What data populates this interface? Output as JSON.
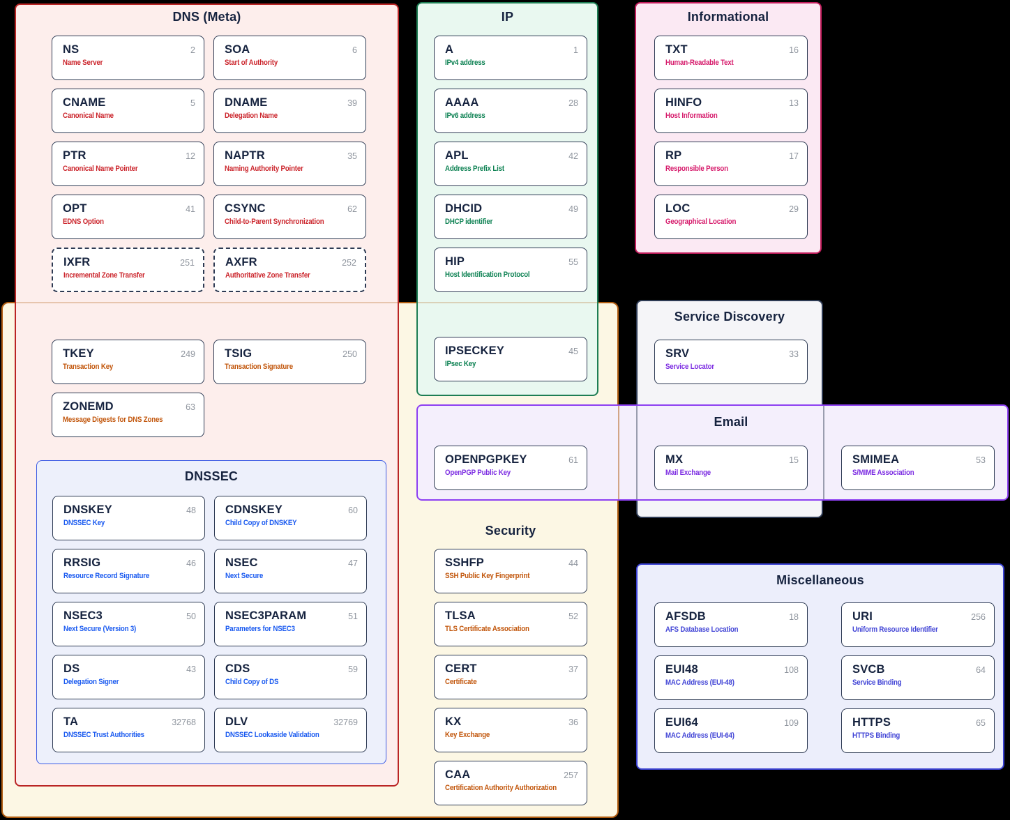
{
  "page": {
    "background": "#000000"
  },
  "card_style": {
    "border_color": "#2d3a53",
    "title_color": "#16233f",
    "number_color": "#8f959e"
  },
  "sections": {
    "dns_meta": {
      "title": "DNS (Meta)",
      "border_color": "#ba2525",
      "background": "#fdeeec",
      "accent": "#cb242b",
      "cards": [
        {
          "code": "NS",
          "number": "2",
          "desc": "Name Server"
        },
        {
          "code": "SOA",
          "number": "6",
          "desc": "Start of Authority"
        },
        {
          "code": "CNAME",
          "number": "5",
          "desc": "Canonical Name"
        },
        {
          "code": "DNAME",
          "number": "39",
          "desc": "Delegation Name"
        },
        {
          "code": "PTR",
          "number": "12",
          "desc": "Canonical Name Pointer"
        },
        {
          "code": "NAPTR",
          "number": "35",
          "desc": "Naming Authority Pointer"
        },
        {
          "code": "OPT",
          "number": "41",
          "desc": "EDNS Option"
        },
        {
          "code": "CSYNC",
          "number": "62",
          "desc": "Child-to-Parent Synchronization"
        },
        {
          "code": "IXFR",
          "number": "251",
          "desc": "Incremental Zone Transfer",
          "dashed": true
        },
        {
          "code": "AXFR",
          "number": "252",
          "desc": "Authoritative Zone Transfer",
          "dashed": true
        }
      ]
    },
    "meta_security_overlap": {
      "accent": "#c2570d",
      "cards": [
        {
          "code": "TKEY",
          "number": "249",
          "desc": "Transaction Key"
        },
        {
          "code": "TSIG",
          "number": "250",
          "desc": "Transaction Signature"
        },
        {
          "code": "ZONEMD",
          "number": "63",
          "desc": "Message Digests for DNS Zones"
        }
      ]
    },
    "dnssec": {
      "title": "DNSSEC",
      "border_color": "#3c5be4",
      "background": "#edf0fb",
      "accent": "#1a5af0",
      "cards": [
        {
          "code": "DNSKEY",
          "number": "48",
          "desc": "DNSSEC Key"
        },
        {
          "code": "CDNSKEY",
          "number": "60",
          "desc": "Child Copy of DNSKEY"
        },
        {
          "code": "RRSIG",
          "number": "46",
          "desc": "Resource Record Signature"
        },
        {
          "code": "NSEC",
          "number": "47",
          "desc": "Next Secure"
        },
        {
          "code": "NSEC3",
          "number": "50",
          "desc": "Next Secure (Version 3)"
        },
        {
          "code": "NSEC3PARAM",
          "number": "51",
          "desc": "Parameters for NSEC3"
        },
        {
          "code": "DS",
          "number": "43",
          "desc": "Delegation Signer"
        },
        {
          "code": "CDS",
          "number": "59",
          "desc": "Child Copy of DS"
        },
        {
          "code": "TA",
          "number": "32768",
          "desc": "DNSSEC Trust Authorities"
        },
        {
          "code": "DLV",
          "number": "32769",
          "desc": "DNSSEC Lookaside Validation"
        }
      ]
    },
    "ip": {
      "title": "IP",
      "border_color": "#1e7e54",
      "background": "#e9f8f0",
      "accent": "#0c8152",
      "cards": [
        {
          "code": "A",
          "number": "1",
          "desc": "IPv4 address"
        },
        {
          "code": "AAAA",
          "number": "28",
          "desc": "IPv6 address"
        },
        {
          "code": "APL",
          "number": "42",
          "desc": "Address Prefix List"
        },
        {
          "code": "DHCID",
          "number": "49",
          "desc": "DHCP identifier"
        },
        {
          "code": "HIP",
          "number": "55",
          "desc": "Host Identification Protocol"
        }
      ],
      "overlap_cards": [
        {
          "code": "IPSECKEY",
          "number": "45",
          "desc": "IPsec Key"
        }
      ]
    },
    "informational": {
      "title": "Informational",
      "border_color": "#c21d5c",
      "background": "#fbe9f3",
      "accent": "#d61a6b",
      "cards": [
        {
          "code": "TXT",
          "number": "16",
          "desc": "Human-Readable Text"
        },
        {
          "code": "HINFO",
          "number": "13",
          "desc": "Host Information"
        },
        {
          "code": "RP",
          "number": "17",
          "desc": "Responsible Person"
        },
        {
          "code": "LOC",
          "number": "29",
          "desc": "Geographical Location"
        }
      ]
    },
    "service_discovery": {
      "title": "Service Discovery",
      "border_color": "#2d3a53",
      "background": "#f5f5f8",
      "accent": "#7c2ce2",
      "cards": [
        {
          "code": "SRV",
          "number": "33",
          "desc": "Service Locator"
        }
      ]
    },
    "email": {
      "title": "Email",
      "border_color": "#8d3ff2",
      "background": "#f4effc",
      "accent": "#7c2ce2",
      "cards_left": [
        {
          "code": "OPENPGPKEY",
          "number": "61",
          "desc": "OpenPGP Public Key"
        }
      ],
      "cards_center": [
        {
          "code": "MX",
          "number": "15",
          "desc": "Mail Exchange"
        }
      ],
      "cards_right": [
        {
          "code": "SMIMEA",
          "number": "53",
          "desc": "S/MIME Association"
        }
      ]
    },
    "security": {
      "title": "Security",
      "border_color": "#b05c10",
      "background": "#fcf7e4",
      "accent": "#c2570d",
      "cards": [
        {
          "code": "SSHFP",
          "number": "44",
          "desc": "SSH Public Key Fingerprint"
        },
        {
          "code": "TLSA",
          "number": "52",
          "desc": "TLS Certificate Association"
        },
        {
          "code": "CERT",
          "number": "37",
          "desc": "Certificate"
        },
        {
          "code": "KX",
          "number": "36",
          "desc": "Key Exchange"
        },
        {
          "code": "CAA",
          "number": "257",
          "desc": "Certification Authority Authorization"
        }
      ]
    },
    "misc": {
      "title": "Miscellaneous",
      "border_color": "#3a41d2",
      "background": "#eceefb",
      "accent": "#4245d6",
      "cards": [
        {
          "code": "AFSDB",
          "number": "18",
          "desc": "AFS Database Location"
        },
        {
          "code": "URI",
          "number": "256",
          "desc": "Uniform Resource Identifier"
        },
        {
          "code": "EUI48",
          "number": "108",
          "desc": "MAC Address (EUI-48)"
        },
        {
          "code": "SVCB",
          "number": "64",
          "desc": "Service Binding"
        },
        {
          "code": "EUI64",
          "number": "109",
          "desc": "MAC Address (EUI-64)"
        },
        {
          "code": "HTTPS",
          "number": "65",
          "desc": "HTTPS Binding"
        }
      ]
    }
  }
}
